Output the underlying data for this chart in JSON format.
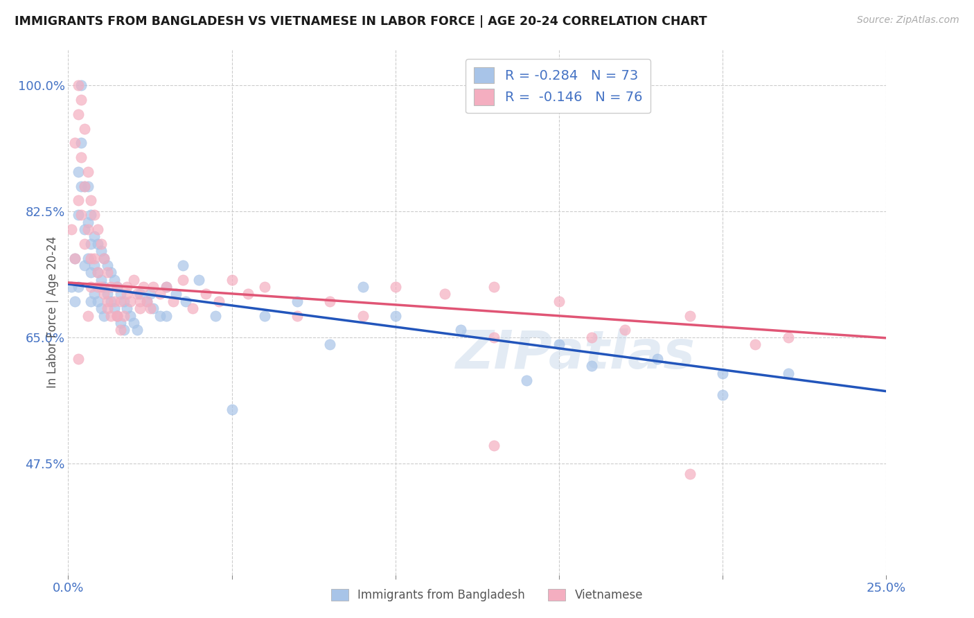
{
  "title": "IMMIGRANTS FROM BANGLADESH VS VIETNAMESE IN LABOR FORCE | AGE 20-24 CORRELATION CHART",
  "source": "Source: ZipAtlas.com",
  "ylabel": "In Labor Force | Age 20-24",
  "x_min": 0.0,
  "x_max": 0.25,
  "y_min": 0.32,
  "y_max": 1.05,
  "x_ticks": [
    0.0,
    0.05,
    0.1,
    0.15,
    0.2,
    0.25
  ],
  "y_ticks": [
    0.475,
    0.65,
    0.825,
    1.0
  ],
  "y_tick_labels": [
    "47.5%",
    "65.0%",
    "82.5%",
    "100.0%"
  ],
  "bangladesh_color": "#a8c4e8",
  "vietnamese_color": "#f4aec0",
  "bangladesh_line_color": "#2255bb",
  "vietnamese_line_color": "#e05575",
  "bangladesh_R": -0.284,
  "bangladesh_N": 73,
  "vietnamese_R": -0.146,
  "vietnamese_N": 76,
  "legend_label_bangladesh": "Immigrants from Bangladesh",
  "legend_label_vietnamese": "Vietnamese",
  "watermark": "ZIPatlas",
  "title_color": "#1a1a1a",
  "axis_label_color": "#4472c4",
  "legend_R_color": "#4472c4",
  "background_color": "#ffffff",
  "grid_color": "#cccccc",
  "bangladesh_line_x0": 0.0,
  "bangladesh_line_y0": 0.724,
  "bangladesh_line_x1": 0.25,
  "bangladesh_line_y1": 0.575,
  "vietnamese_line_x0": 0.0,
  "vietnamese_line_y0": 0.726,
  "vietnamese_line_x1": 0.25,
  "vietnamese_line_y1": 0.649,
  "bangladesh_scatter_x": [
    0.001,
    0.002,
    0.002,
    0.003,
    0.003,
    0.003,
    0.004,
    0.004,
    0.004,
    0.005,
    0.005,
    0.005,
    0.006,
    0.006,
    0.006,
    0.007,
    0.007,
    0.007,
    0.007,
    0.008,
    0.008,
    0.008,
    0.009,
    0.009,
    0.009,
    0.01,
    0.01,
    0.01,
    0.011,
    0.011,
    0.011,
    0.012,
    0.012,
    0.013,
    0.013,
    0.014,
    0.014,
    0.015,
    0.015,
    0.016,
    0.016,
    0.017,
    0.017,
    0.018,
    0.019,
    0.02,
    0.021,
    0.022,
    0.024,
    0.026,
    0.028,
    0.03,
    0.033,
    0.036,
    0.04,
    0.045,
    0.05,
    0.06,
    0.07,
    0.08,
    0.09,
    0.1,
    0.12,
    0.14,
    0.16,
    0.18,
    0.2,
    0.22,
    0.025,
    0.03,
    0.035,
    0.15,
    0.2
  ],
  "bangladesh_scatter_y": [
    0.72,
    0.76,
    0.7,
    0.88,
    0.82,
    0.72,
    1.0,
    0.92,
    0.86,
    0.86,
    0.8,
    0.75,
    0.86,
    0.81,
    0.76,
    0.82,
    0.78,
    0.74,
    0.7,
    0.79,
    0.75,
    0.71,
    0.78,
    0.74,
    0.7,
    0.77,
    0.73,
    0.69,
    0.76,
    0.72,
    0.68,
    0.75,
    0.71,
    0.74,
    0.7,
    0.73,
    0.69,
    0.72,
    0.68,
    0.71,
    0.67,
    0.7,
    0.66,
    0.69,
    0.68,
    0.67,
    0.66,
    0.71,
    0.7,
    0.69,
    0.68,
    0.72,
    0.71,
    0.7,
    0.73,
    0.68,
    0.55,
    0.68,
    0.7,
    0.64,
    0.72,
    0.68,
    0.66,
    0.59,
    0.61,
    0.62,
    0.57,
    0.6,
    0.71,
    0.68,
    0.75,
    0.64,
    0.6
  ],
  "vietnamese_scatter_x": [
    0.001,
    0.002,
    0.002,
    0.003,
    0.003,
    0.003,
    0.004,
    0.004,
    0.004,
    0.005,
    0.005,
    0.005,
    0.006,
    0.006,
    0.007,
    0.007,
    0.007,
    0.008,
    0.008,
    0.009,
    0.009,
    0.01,
    0.01,
    0.011,
    0.011,
    0.012,
    0.012,
    0.013,
    0.013,
    0.014,
    0.015,
    0.015,
    0.016,
    0.016,
    0.017,
    0.018,
    0.019,
    0.02,
    0.021,
    0.022,
    0.023,
    0.024,
    0.025,
    0.026,
    0.028,
    0.03,
    0.032,
    0.035,
    0.038,
    0.042,
    0.046,
    0.05,
    0.055,
    0.06,
    0.07,
    0.08,
    0.09,
    0.1,
    0.115,
    0.13,
    0.15,
    0.17,
    0.19,
    0.21,
    0.003,
    0.006,
    0.009,
    0.012,
    0.015,
    0.018,
    0.022,
    0.13,
    0.13,
    0.16,
    0.19,
    0.22
  ],
  "vietnamese_scatter_y": [
    0.8,
    0.92,
    0.76,
    0.96,
    1.0,
    0.84,
    0.98,
    0.9,
    0.82,
    0.94,
    0.86,
    0.78,
    0.88,
    0.8,
    0.84,
    0.76,
    0.72,
    0.82,
    0.76,
    0.8,
    0.74,
    0.78,
    0.72,
    0.76,
    0.71,
    0.74,
    0.69,
    0.72,
    0.68,
    0.7,
    0.72,
    0.68,
    0.7,
    0.66,
    0.68,
    0.72,
    0.7,
    0.73,
    0.71,
    0.69,
    0.72,
    0.7,
    0.69,
    0.72,
    0.71,
    0.72,
    0.7,
    0.73,
    0.69,
    0.71,
    0.7,
    0.73,
    0.71,
    0.72,
    0.68,
    0.7,
    0.68,
    0.72,
    0.71,
    0.72,
    0.7,
    0.66,
    0.68,
    0.64,
    0.62,
    0.68,
    0.72,
    0.7,
    0.68,
    0.71,
    0.7,
    0.65,
    0.5,
    0.65,
    0.46,
    0.65
  ]
}
